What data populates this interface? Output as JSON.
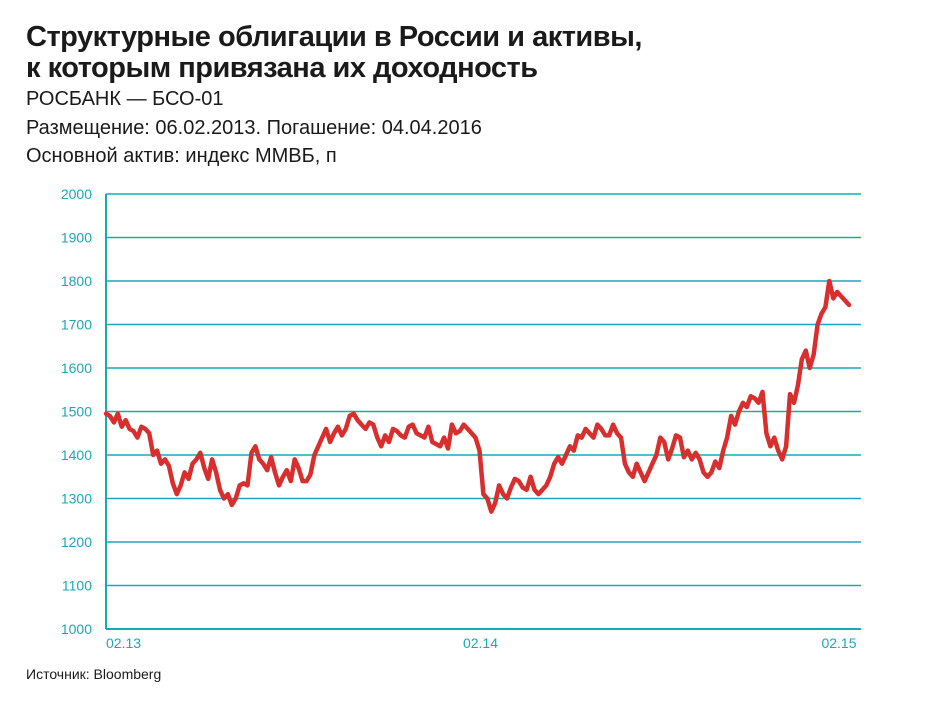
{
  "header": {
    "title_line1": "Структурные облигации в России и активы,",
    "title_line2": "к которым привязана их доходность",
    "subtitle1": "РОСБАНК — БСО-01",
    "subtitle2": "Размещение: 06.02.2013. Погашение: 04.04.2016",
    "subtitle3": "Основной актив: индекс ММВБ, п"
  },
  "footer": {
    "source": "Источник: Bloomberg"
  },
  "colors": {
    "line": "#d92e2e",
    "grid": "#1aa8b8",
    "axis_text": "#1aa8b8"
  },
  "chart_data": {
    "type": "line",
    "title": "",
    "xlabel": "",
    "ylabel": "",
    "ylim": [
      1000,
      2000
    ],
    "yticks": [
      "2000",
      "1900",
      "1800",
      "1700",
      "1600",
      "1500",
      "1400",
      "1300",
      "1200",
      "1100",
      "1000"
    ],
    "xticks": [
      "02.13",
      "02.14",
      "02.15"
    ],
    "grid": true,
    "series": [
      {
        "values": [
          1495,
          1490,
          1475,
          1495,
          1465,
          1480,
          1460,
          1455,
          1440,
          1465,
          1460,
          1450,
          1400,
          1410,
          1380,
          1390,
          1375,
          1335,
          1310,
          1330,
          1360,
          1345,
          1380,
          1390,
          1405,
          1370,
          1345,
          1390,
          1360,
          1320,
          1300,
          1310,
          1285,
          1300,
          1330,
          1335,
          1330,
          1405,
          1420,
          1390,
          1380,
          1365,
          1395,
          1360,
          1330,
          1350,
          1365,
          1340,
          1390,
          1370,
          1340,
          1340,
          1355,
          1400,
          1420,
          1440,
          1460,
          1430,
          1450,
          1465,
          1445,
          1460,
          1490,
          1495,
          1480,
          1470,
          1460,
          1475,
          1470,
          1440,
          1420,
          1445,
          1430,
          1460,
          1455,
          1445,
          1440,
          1465,
          1470,
          1450,
          1445,
          1440,
          1465,
          1430,
          1425,
          1420,
          1440,
          1415,
          1470,
          1450,
          1455,
          1470,
          1460,
          1450,
          1440,
          1410,
          1310,
          1300,
          1270,
          1290,
          1330,
          1310,
          1300,
          1325,
          1345,
          1340,
          1325,
          1320,
          1350,
          1320,
          1310,
          1320,
          1330,
          1350,
          1380,
          1395,
          1380,
          1400,
          1420,
          1410,
          1445,
          1440,
          1460,
          1450,
          1440,
          1470,
          1460,
          1445,
          1445,
          1470,
          1450,
          1440,
          1380,
          1360,
          1350,
          1380,
          1360,
          1340,
          1360,
          1380,
          1400,
          1440,
          1430,
          1390,
          1415,
          1445,
          1440,
          1395,
          1410,
          1390,
          1405,
          1390,
          1360,
          1350,
          1360,
          1385,
          1370,
          1410,
          1440,
          1490,
          1470,
          1500,
          1520,
          1510,
          1535,
          1530,
          1520,
          1545,
          1450,
          1420,
          1440,
          1410,
          1390,
          1420,
          1540,
          1520,
          1560,
          1620,
          1640,
          1600,
          1630,
          1700,
          1725,
          1740,
          1800,
          1760,
          1775,
          1765,
          1755,
          1745
        ]
      }
    ]
  }
}
